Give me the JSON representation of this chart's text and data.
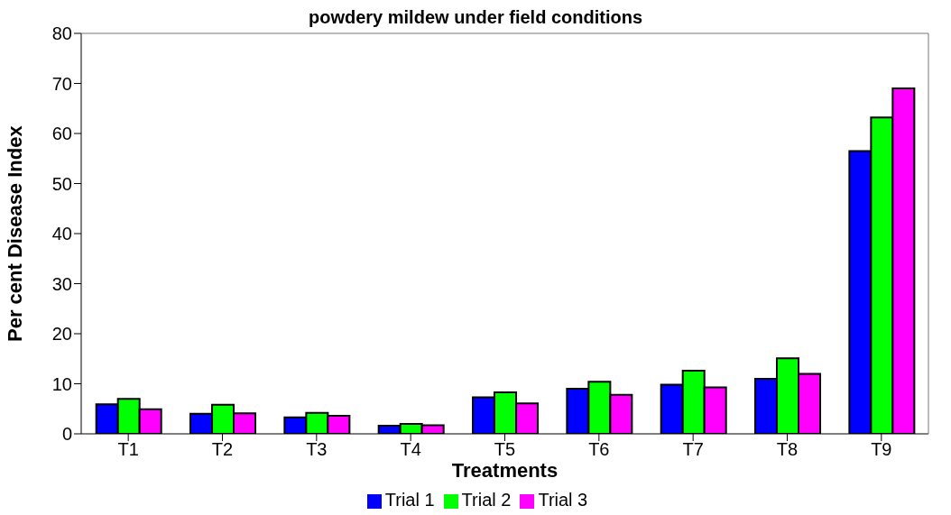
{
  "chart_data": {
    "type": "bar",
    "title": "powdery mildew under field conditions",
    "xlabel": "Treatments",
    "ylabel": "Per cent Disease Index",
    "categories": [
      "T1",
      "T2",
      "T3",
      "T4",
      "T5",
      "T6",
      "T7",
      "T8",
      "T9"
    ],
    "series": [
      {
        "name": "Trial 1",
        "color": "#0000ff",
        "values": [
          5.9,
          4.0,
          3.3,
          1.6,
          7.3,
          9.0,
          9.8,
          11.0,
          56.5
        ]
      },
      {
        "name": "Trial 2",
        "color": "#00ff00",
        "values": [
          7.0,
          5.8,
          4.2,
          2.0,
          8.3,
          10.4,
          12.6,
          15.1,
          63.2
        ]
      },
      {
        "name": "Trial 3",
        "color": "#ff00ff",
        "values": [
          4.9,
          4.1,
          3.6,
          1.7,
          6.1,
          7.8,
          9.3,
          12.0,
          69.0
        ]
      }
    ],
    "ylim": [
      0,
      80
    ],
    "yticks": [
      0,
      10,
      20,
      30,
      40,
      50,
      60,
      70,
      80
    ],
    "grid": false,
    "legend": "bottom"
  }
}
